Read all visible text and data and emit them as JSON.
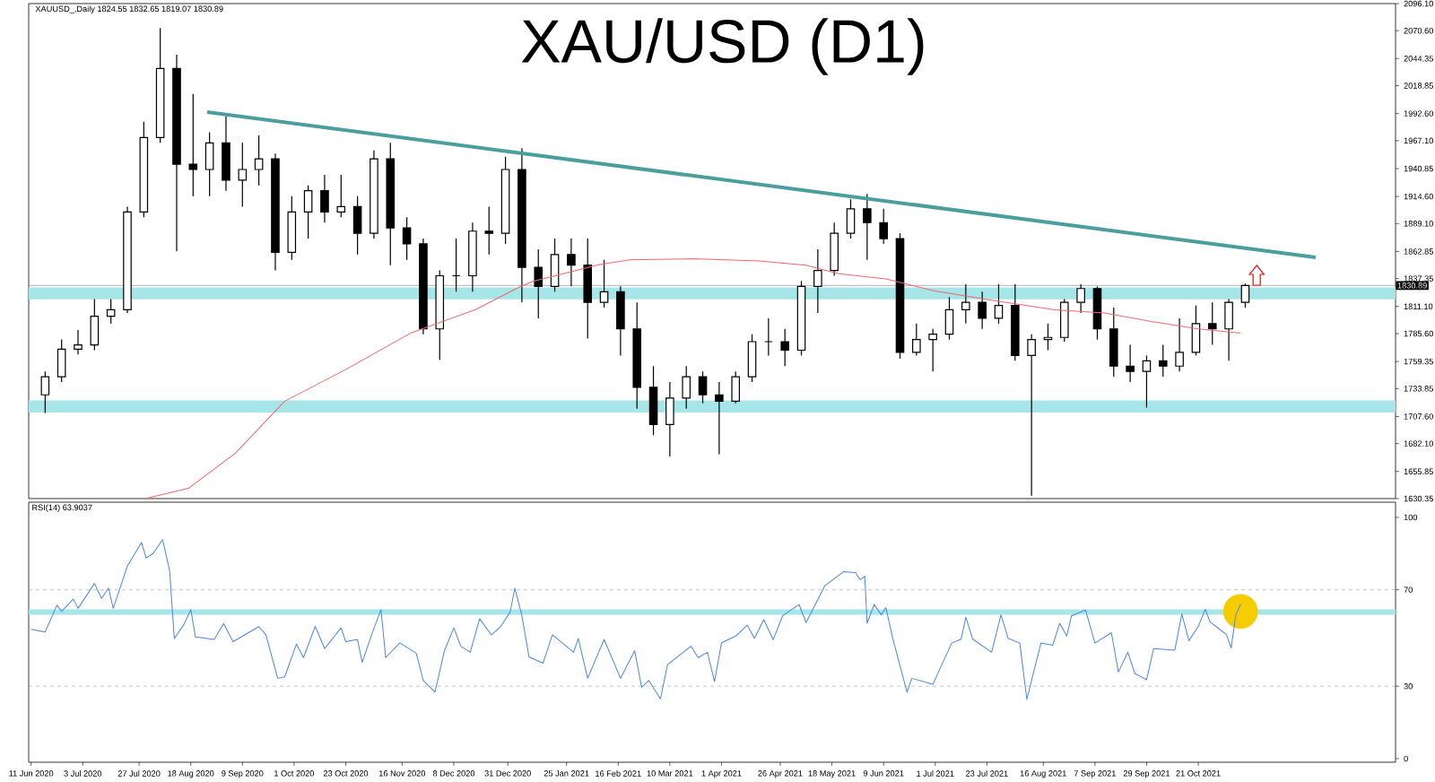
{
  "chart_data": [
    {
      "type": "candlestick",
      "title": "XAU/USD (D1)",
      "annotations": [
        "XAUUSD_,Daily 1824.55 1832.65 1819.07 1830.89"
      ],
      "x": [
        "2020-06-17",
        "2020-06-24",
        "2020-07-01",
        "2020-07-08",
        "2020-07-15",
        "2020-07-22",
        "2020-07-29",
        "2020-08-05",
        "2020-08-12",
        "2020-08-19",
        "2020-08-26",
        "2020-09-02",
        "2020-09-09",
        "2020-09-16",
        "2020-09-23",
        "2020-09-30",
        "2020-10-07",
        "2020-10-14",
        "2020-10-21",
        "2020-10-28",
        "2020-11-04",
        "2020-11-11",
        "2020-11-18",
        "2020-11-25",
        "2020-12-02",
        "2020-12-09",
        "2020-12-16",
        "2020-12-23",
        "2020-12-30",
        "2021-01-06",
        "2021-01-13",
        "2021-01-20",
        "2021-01-27",
        "2021-02-03",
        "2021-02-10",
        "2021-02-17",
        "2021-02-24",
        "2021-03-03",
        "2021-03-10",
        "2021-03-17",
        "2021-03-24",
        "2021-03-31",
        "2021-04-07",
        "2021-04-14",
        "2021-04-21",
        "2021-04-28",
        "2021-05-05",
        "2021-05-12",
        "2021-05-19",
        "2021-05-26",
        "2021-06-02",
        "2021-06-09",
        "2021-06-16",
        "2021-06-23",
        "2021-06-30",
        "2021-07-07",
        "2021-07-14",
        "2021-07-21",
        "2021-07-28",
        "2021-08-04",
        "2021-08-11",
        "2021-08-18",
        "2021-08-25",
        "2021-09-01",
        "2021-09-08",
        "2021-09-15",
        "2021-09-22",
        "2021-09-29",
        "2021-10-06",
        "2021-10-13",
        "2021-10-20",
        "2021-10-27",
        "2021-11-03",
        "2021-11-10"
      ],
      "ohlc": [
        [
          1728,
          1750,
          1711,
          1745
        ],
        [
          1745,
          1780,
          1740,
          1771
        ],
        [
          1771,
          1789,
          1766,
          1775
        ],
        [
          1775,
          1818,
          1770,
          1802
        ],
        [
          1802,
          1818,
          1795,
          1808
        ],
        [
          1808,
          1905,
          1805,
          1900
        ],
        [
          1900,
          1985,
          1895,
          1970
        ],
        [
          1970,
          2073,
          1965,
          2035
        ],
        [
          2035,
          2048,
          1863,
          1945
        ],
        [
          1945,
          2011,
          1915,
          1940
        ],
        [
          1940,
          1975,
          1915,
          1965
        ],
        [
          1965,
          1990,
          1920,
          1930
        ],
        [
          1930,
          1965,
          1905,
          1940
        ],
        [
          1940,
          1972,
          1925,
          1950
        ],
        [
          1950,
          1955,
          1845,
          1862
        ],
        [
          1862,
          1915,
          1855,
          1900
        ],
        [
          1900,
          1925,
          1875,
          1920
        ],
        [
          1920,
          1935,
          1890,
          1900
        ],
        [
          1900,
          1935,
          1895,
          1905
        ],
        [
          1905,
          1915,
          1860,
          1880
        ],
        [
          1880,
          1958,
          1875,
          1950
        ],
        [
          1950,
          1965,
          1850,
          1885
        ],
        [
          1885,
          1895,
          1855,
          1870
        ],
        [
          1870,
          1875,
          1785,
          1790
        ],
        [
          1790,
          1845,
          1761,
          1840
        ],
        [
          1840,
          1875,
          1825,
          1840
        ],
        [
          1840,
          1890,
          1825,
          1882
        ],
        [
          1882,
          1905,
          1860,
          1880
        ],
        [
          1880,
          1952,
          1870,
          1940
        ],
        [
          1940,
          1960,
          1815,
          1848
        ],
        [
          1848,
          1865,
          1800,
          1830
        ],
        [
          1830,
          1875,
          1825,
          1860
        ],
        [
          1860,
          1875,
          1830,
          1850
        ],
        [
          1850,
          1875,
          1781,
          1815
        ],
        [
          1815,
          1855,
          1810,
          1825
        ],
        [
          1825,
          1830,
          1765,
          1790
        ],
        [
          1790,
          1815,
          1715,
          1735
        ],
        [
          1735,
          1755,
          1690,
          1700
        ],
        [
          1700,
          1740,
          1670,
          1725
        ],
        [
          1725,
          1755,
          1715,
          1745
        ],
        [
          1745,
          1750,
          1720,
          1728
        ],
        [
          1728,
          1740,
          1672,
          1722
        ],
        [
          1722,
          1750,
          1720,
          1745
        ],
        [
          1745,
          1785,
          1740,
          1778
        ],
        [
          1778,
          1800,
          1765,
          1778
        ],
        [
          1778,
          1790,
          1755,
          1770
        ],
        [
          1770,
          1835,
          1765,
          1830
        ],
        [
          1830,
          1865,
          1805,
          1845
        ],
        [
          1845,
          1890,
          1840,
          1880
        ],
        [
          1880,
          1912,
          1875,
          1903
        ],
        [
          1903,
          1917,
          1855,
          1890
        ],
        [
          1890,
          1903,
          1870,
          1875
        ],
        [
          1875,
          1880,
          1762,
          1768
        ],
        [
          1768,
          1795,
          1765,
          1780
        ],
        [
          1780,
          1790,
          1750,
          1785
        ],
        [
          1785,
          1820,
          1780,
          1808
        ],
        [
          1808,
          1832,
          1795,
          1815
        ],
        [
          1815,
          1825,
          1790,
          1800
        ],
        [
          1800,
          1832,
          1795,
          1812
        ],
        [
          1812,
          1832,
          1760,
          1765
        ],
        [
          1765,
          1785,
          1633,
          1780
        ],
        [
          1780,
          1795,
          1770,
          1782
        ],
        [
          1782,
          1818,
          1778,
          1815
        ],
        [
          1815,
          1832,
          1805,
          1828
        ],
        [
          1828,
          1830,
          1780,
          1790
        ],
        [
          1790,
          1810,
          1745,
          1755
        ],
        [
          1755,
          1775,
          1740,
          1750
        ],
        [
          1750,
          1765,
          1716,
          1760
        ],
        [
          1760,
          1775,
          1745,
          1755
        ],
        [
          1755,
          1800,
          1750,
          1768
        ],
        [
          1768,
          1812,
          1765,
          1795
        ],
        [
          1795,
          1815,
          1775,
          1790
        ],
        [
          1790,
          1818,
          1760,
          1815
        ],
        [
          1815,
          1832.65,
          1810,
          1830.89
        ]
      ],
      "series": [
        {
          "type": "line",
          "color": "#f06a6a",
          "x": [
            "2020-07-30",
            "2020-08-17",
            "2020-09-06",
            "2020-09-27",
            "2020-10-24",
            "2020-11-20",
            "2020-12-17",
            "2021-01-05",
            "2021-01-11",
            "2021-02-08",
            "2021-02-21",
            "2021-03-20",
            "2021-04-17",
            "2021-05-07",
            "2021-05-21",
            "2021-06-10",
            "2021-06-30",
            "2021-07-25",
            "2021-08-21",
            "2021-09-11",
            "2021-10-01",
            "2021-10-21",
            "2021-11-08"
          ],
          "values": [
            1630.5,
            1640,
            1673,
            1722,
            1753,
            1786.5,
            1808,
            1829.5,
            1835,
            1850.6,
            1855,
            1856,
            1854,
            1850,
            1842,
            1837,
            1826,
            1817,
            1808,
            1805,
            1797,
            1790,
            1786
          ]
        },
        {
          "type": "line",
          "color": "#4a9e9e",
          "x": [
            "2020-08-25",
            "2021-12-10"
          ],
          "values": [
            1994,
            1857.3
          ]
        }
      ],
      "bands": [
        {
          "axis": "y",
          "from": 1817.8,
          "to": 1829.1,
          "color": "#a6e6e8"
        },
        {
          "axis": "y",
          "from": 1711.4,
          "to": 1722.8,
          "color": "#a6e6e8"
        }
      ],
      "ref_lines": [
        {
          "axis": "y",
          "value": 1830.89,
          "label": "1830.89",
          "color": "#808080",
          "line_style": "solid"
        }
      ],
      "xlim": [
        "2020-06-10",
        "2022-01-13"
      ],
      "ylim": [
        1630.35,
        2096.1
      ],
      "yticks": [
        {
          "value": 1630.35,
          "label": "1630.35"
        },
        {
          "value": 1655.85,
          "label": "1655.85"
        },
        {
          "value": 1682.1,
          "label": "1682.10"
        },
        {
          "value": 1707.6,
          "label": "1707.60"
        },
        {
          "value": 1733.85,
          "label": "1733.85"
        },
        {
          "value": 1759.35,
          "label": "1759.35"
        },
        {
          "value": 1785.6,
          "label": "1785.60"
        },
        {
          "value": 1811.1,
          "label": "1811.10"
        },
        {
          "value": 1837.35,
          "label": "1837.35"
        },
        {
          "value": 1862.85,
          "label": "1862.85"
        },
        {
          "value": 1889.1,
          "label": "1889.10"
        },
        {
          "value": 1914.6,
          "label": "1914.60"
        },
        {
          "value": 1940.85,
          "label": "1940.85"
        },
        {
          "value": 1967.1,
          "label": "1967.10"
        },
        {
          "value": 1992.6,
          "label": "1992.60"
        },
        {
          "value": 2018.85,
          "label": "2018.85"
        },
        {
          "value": 2044.35,
          "label": "2044.35"
        },
        {
          "value": 2070.6,
          "label": "2070.60"
        },
        {
          "value": 2096.1,
          "label": "2096.10"
        }
      ],
      "tick_labels": "y"
    },
    {
      "type": "line",
      "annotations": [
        "RSI(14) 63.9037"
      ],
      "series": [
        {
          "type": "scatter",
          "color": "#f5cc00",
          "marker": "circle",
          "x": [
            "2021-11-08"
          ],
          "values": [
            61.0
          ]
        },
        {
          "type": "line",
          "color": "#4a86e8",
          "x": [
            "2020-06-11",
            "2020-06-17",
            "2020-06-22",
            "2020-06-24",
            "2020-06-29",
            "2020-07-01",
            "2020-07-08",
            "2020-07-11",
            "2020-07-14",
            "2020-07-16",
            "2020-07-22",
            "2020-07-28",
            "2020-07-30",
            "2020-08-02",
            "2020-08-06",
            "2020-08-09",
            "2020-08-11",
            "2020-08-15",
            "2020-08-18",
            "2020-08-20",
            "2020-08-28",
            "2020-09-01",
            "2020-09-05",
            "2020-09-16",
            "2020-09-19",
            "2020-09-24",
            "2020-09-27",
            "2020-10-02",
            "2020-10-05",
            "2020-10-10",
            "2020-10-14",
            "2020-10-21",
            "2020-10-23",
            "2020-10-28",
            "2020-10-30",
            "2020-11-03",
            "2020-11-07",
            "2020-11-09",
            "2020-11-15",
            "2020-11-22",
            "2020-11-25",
            "2020-11-30",
            "2020-12-04",
            "2020-12-08",
            "2020-12-11",
            "2020-12-15",
            "2020-12-19",
            "2020-12-24",
            "2020-12-28",
            "2021-01-01",
            "2021-01-03",
            "2021-01-06",
            "2021-01-09",
            "2021-01-15",
            "2021-01-19",
            "2021-01-28",
            "2021-01-30",
            "2021-02-03",
            "2021-02-10",
            "2021-02-17",
            "2021-02-23",
            "2021-02-26",
            "2021-03-01",
            "2021-03-06",
            "2021-03-09",
            "2021-03-19",
            "2021-03-22",
            "2021-03-26",
            "2021-03-29",
            "2021-04-01",
            "2021-04-07",
            "2021-04-12",
            "2021-04-15",
            "2021-04-19",
            "2021-04-23",
            "2021-04-27",
            "2021-05-04",
            "2021-05-07",
            "2021-05-15",
            "2021-05-23",
            "2021-05-28",
            "2021-05-30",
            "2021-06-01",
            "2021-06-02",
            "2021-06-05",
            "2021-06-08",
            "2021-06-10",
            "2021-06-13",
            "2021-06-19",
            "2021-06-21",
            "2021-06-30",
            "2021-07-08",
            "2021-07-12",
            "2021-07-14",
            "2021-07-17",
            "2021-07-25",
            "2021-07-29",
            "2021-08-01",
            "2021-08-06",
            "2021-08-09",
            "2021-08-12",
            "2021-08-15",
            "2021-08-20",
            "2021-08-23",
            "2021-08-26",
            "2021-08-28",
            "2021-09-03",
            "2021-09-07",
            "2021-09-14",
            "2021-09-17",
            "2021-09-21",
            "2021-09-24",
            "2021-09-29",
            "2021-10-02",
            "2021-10-11",
            "2021-10-14",
            "2021-10-17",
            "2021-10-21",
            "2021-10-24",
            "2021-10-26",
            "2021-10-30",
            "2021-11-02",
            "2021-11-04",
            "2021-11-06",
            "2021-11-08"
          ],
          "values": [
            53.6,
            52.5,
            63.6,
            61.1,
            66.1,
            62.3,
            72.6,
            66.4,
            70.7,
            62.3,
            79.8,
            89.6,
            83.2,
            85.1,
            90.8,
            77.9,
            49.8,
            55.5,
            61.8,
            50.4,
            49.4,
            56.0,
            48.5,
            54.7,
            51.3,
            33.3,
            33.9,
            47.5,
            41.9,
            54.8,
            45.6,
            54.2,
            48.5,
            49.4,
            39.9,
            51.3,
            61.8,
            41.9,
            48.0,
            43.7,
            32.4,
            27.6,
            44.7,
            54.2,
            46.6,
            44.1,
            58.0,
            51.3,
            54.8,
            60.8,
            70.7,
            59.3,
            42.2,
            39.6,
            51.3,
            44.1,
            49.8,
            33.3,
            49.4,
            33.3,
            44.7,
            29.6,
            32.4,
            24.8,
            39.0,
            46.6,
            41.9,
            44.1,
            32.0,
            48.0,
            50.8,
            55.3,
            49.9,
            57.6,
            49.3,
            59.2,
            63.9,
            56.4,
            71.7,
            77.5,
            77.1,
            74.2,
            75.6,
            56.1,
            63.9,
            59.6,
            62.6,
            49.5,
            27.5,
            33.3,
            30.8,
            47.9,
            49.5,
            58.6,
            49.5,
            44.1,
            59.6,
            49.9,
            47.9,
            24.6,
            36.3,
            47.9,
            47.0,
            56.1,
            50.8,
            59.2,
            61.6,
            47.9,
            52.2,
            35.9,
            44.1,
            35.3,
            32.7,
            45.6,
            45.0,
            60.0,
            48.9,
            54.8,
            61.9,
            56.6,
            53.7,
            51.4,
            45.9,
            59.6,
            63.9
          ]
        }
      ],
      "bands": [
        {
          "axis": "y",
          "from": 59.6,
          "to": 61.9,
          "color": "#a6e6e8"
        }
      ],
      "ref_lines": [
        {
          "axis": "y",
          "value": 70,
          "color": "#a0a0a0",
          "line_style": "dashed"
        },
        {
          "axis": "y",
          "value": 30,
          "color": "#a0a0a0",
          "line_style": "dashed"
        }
      ],
      "xlim": [
        "2020-06-10",
        "2022-01-13"
      ],
      "ylim": [
        -1.5,
        106.3
      ],
      "xticks": [
        {
          "value": "2020-06-11",
          "label": "11 Jun 2020"
        },
        {
          "value": "2020-07-03",
          "label": "3 Jul 2020"
        },
        {
          "value": "2020-07-27",
          "label": "27 Jul 2020"
        },
        {
          "value": "2020-08-18",
          "label": "18 Aug 2020"
        },
        {
          "value": "2020-09-09",
          "label": "9 Sep 2020"
        },
        {
          "value": "2020-10-01",
          "label": "1 Oct 2020"
        },
        {
          "value": "2020-10-23",
          "label": "23 Oct 2020"
        },
        {
          "value": "2020-11-16",
          "label": "16 Nov 2020"
        },
        {
          "value": "2020-12-08",
          "label": "8 Dec 2020"
        },
        {
          "value": "2020-12-31",
          "label": "31 Dec 2020"
        },
        {
          "value": "2021-01-25",
          "label": "25 Jan 2021"
        },
        {
          "value": "2021-02-16",
          "label": "16 Feb 2021"
        },
        {
          "value": "2021-03-10",
          "label": "10 Mar 2021"
        },
        {
          "value": "2021-04-01",
          "label": "1 Apr 2021"
        },
        {
          "value": "2021-04-26",
          "label": "26 Apr 2021"
        },
        {
          "value": "2021-05-18",
          "label": "18 May 2021"
        },
        {
          "value": "2021-06-09",
          "label": "9 Jun 2021"
        },
        {
          "value": "2021-07-01",
          "label": "1 Jul 2021"
        },
        {
          "value": "2021-07-23",
          "label": "23 Jul 2021"
        },
        {
          "value": "2021-08-16",
          "label": "16 Aug 2021"
        },
        {
          "value": "2021-09-07",
          "label": "7 Sep 2021"
        },
        {
          "value": "2021-09-29",
          "label": "29 Sep 2021"
        },
        {
          "value": "2021-10-21",
          "label": "21 Oct 2021"
        }
      ],
      "yticks": [
        0,
        30,
        70,
        100
      ]
    }
  ]
}
